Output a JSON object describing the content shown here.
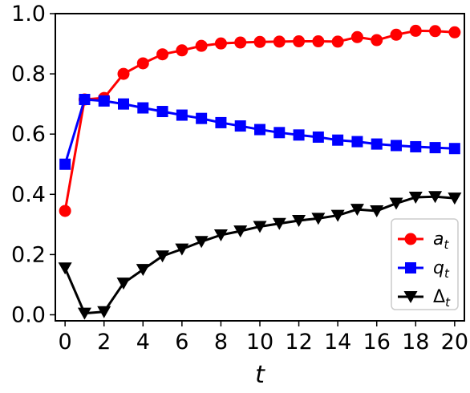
{
  "chart_data": {
    "type": "line",
    "title": "",
    "xlabel": "t",
    "ylabel": "",
    "xlim": [
      -0.5,
      20.5
    ],
    "ylim": [
      -0.02,
      1.0
    ],
    "grid": false,
    "legend_position": "bottom-right",
    "x_ticks": [
      "0",
      "2",
      "4",
      "6",
      "8",
      "10",
      "12",
      "14",
      "16",
      "18",
      "20"
    ],
    "y_ticks": [
      "0.0",
      "0.2",
      "0.4",
      "0.6",
      "0.8",
      "1.0"
    ],
    "x": [
      0,
      1,
      2,
      3,
      4,
      5,
      6,
      7,
      8,
      9,
      10,
      11,
      12,
      13,
      14,
      15,
      16,
      17,
      18,
      19,
      20
    ],
    "series": [
      {
        "name": "a",
        "subscript": "t",
        "color": "#ff0000",
        "marker": "circle",
        "values": [
          0.345,
          0.715,
          0.72,
          0.8,
          0.835,
          0.865,
          0.878,
          0.893,
          0.901,
          0.904,
          0.906,
          0.907,
          0.908,
          0.908,
          0.907,
          0.922,
          0.912,
          0.93,
          0.943,
          0.942,
          0.938
        ]
      },
      {
        "name": "q",
        "subscript": "t",
        "color": "#0000ff",
        "marker": "square",
        "values": [
          0.5,
          0.715,
          0.71,
          0.7,
          0.687,
          0.675,
          0.663,
          0.652,
          0.638,
          0.627,
          0.615,
          0.605,
          0.597,
          0.59,
          0.58,
          0.575,
          0.567,
          0.562,
          0.558,
          0.555,
          0.552
        ]
      },
      {
        "name": "Δ",
        "subscript": "t",
        "color": "#000000",
        "marker": "triangle-down",
        "values": [
          0.155,
          0.005,
          0.01,
          0.105,
          0.15,
          0.195,
          0.218,
          0.243,
          0.265,
          0.278,
          0.293,
          0.303,
          0.313,
          0.32,
          0.33,
          0.35,
          0.345,
          0.37,
          0.39,
          0.392,
          0.387
        ]
      }
    ]
  }
}
